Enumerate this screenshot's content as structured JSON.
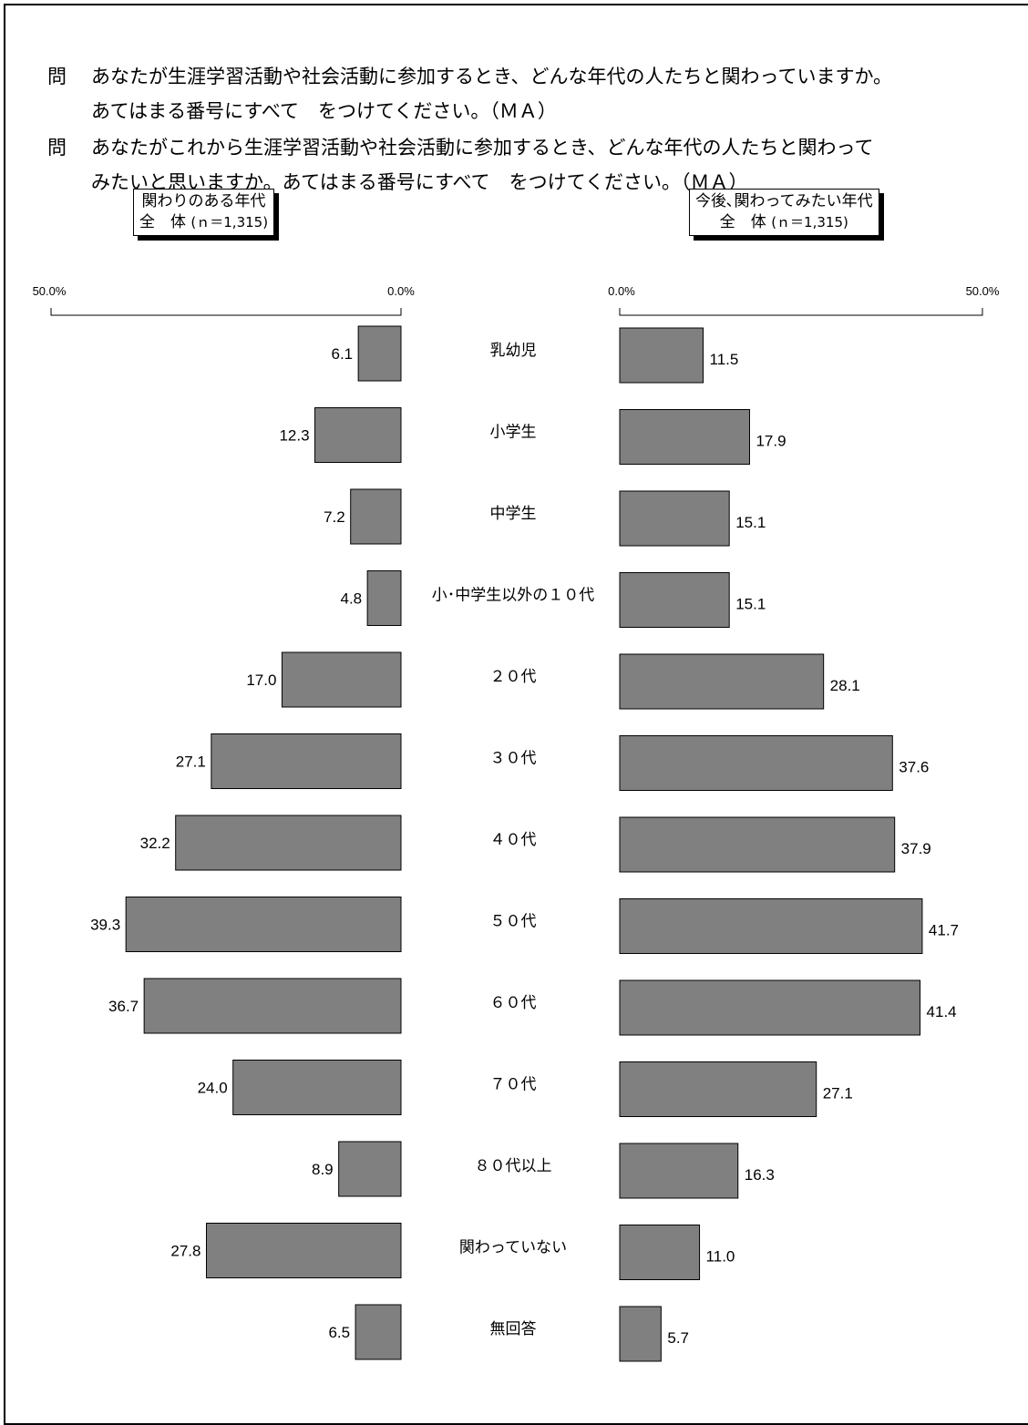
{
  "question1": {
    "mark": "問",
    "line1": "あなたが生涯学習活動や社会活動に参加するとき、どんな年代の人たちと関わっていますか。",
    "line2": "あてはまる番号にすべて　をつけてください。（ＭＡ）"
  },
  "question2": {
    "mark": "問",
    "line1": "あなたがこれから生涯学習活動や社会活動に参加するとき、どんな年代の人たちと関わって",
    "line2": "みたいと思いますか。あてはまる番号にすべて　をつけてください。（ＭＡ）"
  },
  "left_legend": {
    "line1": "関わりのある年代",
    "line2_main": "全　体",
    "line2_n": "(ｎ＝1,315)"
  },
  "right_legend": {
    "line1": "今後､関わってみたい年代",
    "line2_main": "全　体",
    "line2_n": "(ｎ＝1,315)"
  },
  "chart_data": {
    "type": "bar",
    "orientation": "horizontal-butterfly",
    "axis_ticks": {
      "left_max": "50.0%",
      "left_zero": "0.0%",
      "right_zero": "0.0%",
      "right_max": "50.0%"
    },
    "xlim": [
      0,
      50
    ],
    "categories": [
      "乳幼児",
      "小学生",
      "中学生",
      "小･中学生以外の１０代",
      "２０代",
      "３０代",
      "４０代",
      "５０代",
      "６０代",
      "７０代",
      "８０代以上",
      "関わっていない",
      "無回答"
    ],
    "series": [
      {
        "values": [
          6.1,
          12.3,
          7.2,
          4.8,
          17.0,
          27.1,
          32.2,
          39.3,
          36.7,
          24.0,
          8.9,
          27.8,
          6.5
        ],
        "labels": [
          "6.1",
          "12.3",
          "7.2",
          "4.8",
          "17.0",
          "27.1",
          "32.2",
          "39.3",
          "36.7",
          "24.0",
          "8.9",
          "27.8",
          "6.5"
        ]
      },
      {
        "values": [
          11.5,
          17.9,
          15.1,
          15.1,
          28.1,
          37.6,
          37.9,
          41.7,
          41.4,
          27.1,
          16.3,
          11.0,
          5.7
        ],
        "labels": [
          "11.5",
          "17.9",
          "15.1",
          "15.1",
          "28.1",
          "37.6",
          "37.9",
          "41.7",
          "41.4",
          "27.1",
          "16.3",
          "11.0",
          "5.7"
        ]
      }
    ],
    "bar_color": "#808080"
  }
}
